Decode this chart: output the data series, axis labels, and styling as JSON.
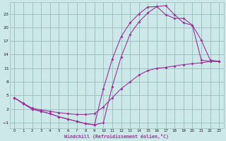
{
  "xlabel": "Windchill (Refroidissement éolien,°C)",
  "bg_color": "#cce8e8",
  "grid_color": "#99bbbb",
  "line_color": "#993399",
  "xlim": [
    -0.5,
    23.5
  ],
  "ylim": [
    -2.2,
    25.5
  ],
  "xticks": [
    0,
    1,
    2,
    3,
    4,
    5,
    6,
    7,
    8,
    9,
    10,
    11,
    12,
    13,
    14,
    15,
    16,
    17,
    18,
    19,
    20,
    21,
    22,
    23
  ],
  "yticks": [
    -1,
    2,
    5,
    8,
    11,
    14,
    17,
    20,
    23
  ],
  "curve1_x": [
    0,
    1,
    2,
    3,
    4,
    5,
    6,
    7,
    8,
    9,
    10,
    11,
    12,
    13,
    14,
    15,
    16,
    17,
    18,
    19,
    20,
    21,
    22,
    23
  ],
  "curve1_y": [
    4.5,
    3.2,
    2.0,
    1.5,
    1.0,
    0.3,
    -0.2,
    -0.7,
    -1.2,
    -1.5,
    -1.0,
    7.0,
    13.5,
    18.5,
    21.2,
    23.2,
    24.6,
    24.8,
    22.8,
    21.0,
    20.5,
    17.2,
    12.8,
    12.5
  ],
  "curve2_x": [
    0,
    1,
    2,
    3,
    4,
    5,
    6,
    7,
    8,
    9,
    10,
    11,
    12,
    13,
    14,
    15,
    16,
    17,
    18,
    19,
    20,
    21,
    22,
    23
  ],
  "curve2_y": [
    4.5,
    3.2,
    2.0,
    1.5,
    1.0,
    0.3,
    -0.2,
    -0.7,
    -1.2,
    -1.5,
    6.5,
    13.0,
    18.0,
    21.0,
    23.0,
    24.5,
    24.6,
    22.8,
    22.0,
    22.0,
    20.5,
    12.8,
    12.5,
    12.5
  ],
  "curve3_x": [
    0,
    1,
    2,
    3,
    4,
    5,
    6,
    7,
    8,
    9,
    10,
    11,
    12,
    13,
    14,
    15,
    16,
    17,
    18,
    19,
    20,
    21,
    22,
    23
  ],
  "curve3_y": [
    4.5,
    3.3,
    2.2,
    1.8,
    1.5,
    1.2,
    1.0,
    0.8,
    0.8,
    1.0,
    2.5,
    4.5,
    6.5,
    8.0,
    9.5,
    10.5,
    11.0,
    11.2,
    11.5,
    11.8,
    12.0,
    12.2,
    12.5,
    12.5
  ]
}
